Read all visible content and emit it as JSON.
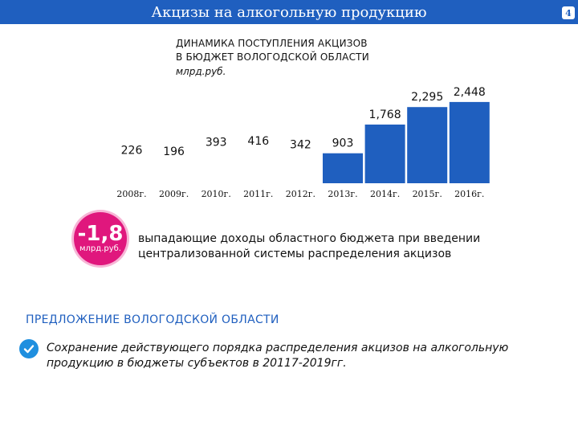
{
  "header": {
    "title": "Акцизы на алкогольную продукцию",
    "page_number": "4"
  },
  "chart_data": {
    "type": "bar",
    "title": "ДИНАМИКА ПОСТУПЛЕНИЯ АКЦИЗОВ В БЮДЖЕТ ВОЛОГОДСКОЙ ОБЛАСТИ",
    "title_lines": [
      "ДИНАМИКА ПОСТУПЛЕНИЯ АКЦИЗОВ",
      "В БЮДЖЕТ ВОЛОГОДСКОЙ ОБЛАСТИ"
    ],
    "unit": "млрд.руб.",
    "categories": [
      "2008г.",
      "2009г.",
      "2010г.",
      "2011г.",
      "2012г.",
      "2013г.",
      "2014г.",
      "2015г.",
      "2016г."
    ],
    "values": [
      226,
      196,
      393,
      416,
      342,
      903,
      1768,
      2295,
      2448
    ],
    "value_labels": [
      "226",
      "196",
      "393",
      "416",
      "342",
      "903",
      "1,768",
      "2,295",
      "2,448"
    ],
    "bars_drawn": [
      false,
      false,
      false,
      false,
      false,
      true,
      true,
      true,
      true
    ],
    "bar_color": "#1f5fbf"
  },
  "badge": {
    "value": "-1,8",
    "unit": "млрд.руб.",
    "color": "#e0177d"
  },
  "badge_description": "выпадающие доходы областного бюджета при введении централизованной системы распределения акцизов",
  "proposal": {
    "heading": "ПРЕДЛОЖЕНИЕ ВОЛОГОДСКОЙ ОБЛАСТИ",
    "icon": "check-icon",
    "text": "Сохранение действующего порядка распределения акцизов на алкогольную продукцию в бюджеты субъектов в 20117-2019гг."
  },
  "colors": {
    "accent": "#1f5fbf",
    "check": "#1f8fdf"
  }
}
